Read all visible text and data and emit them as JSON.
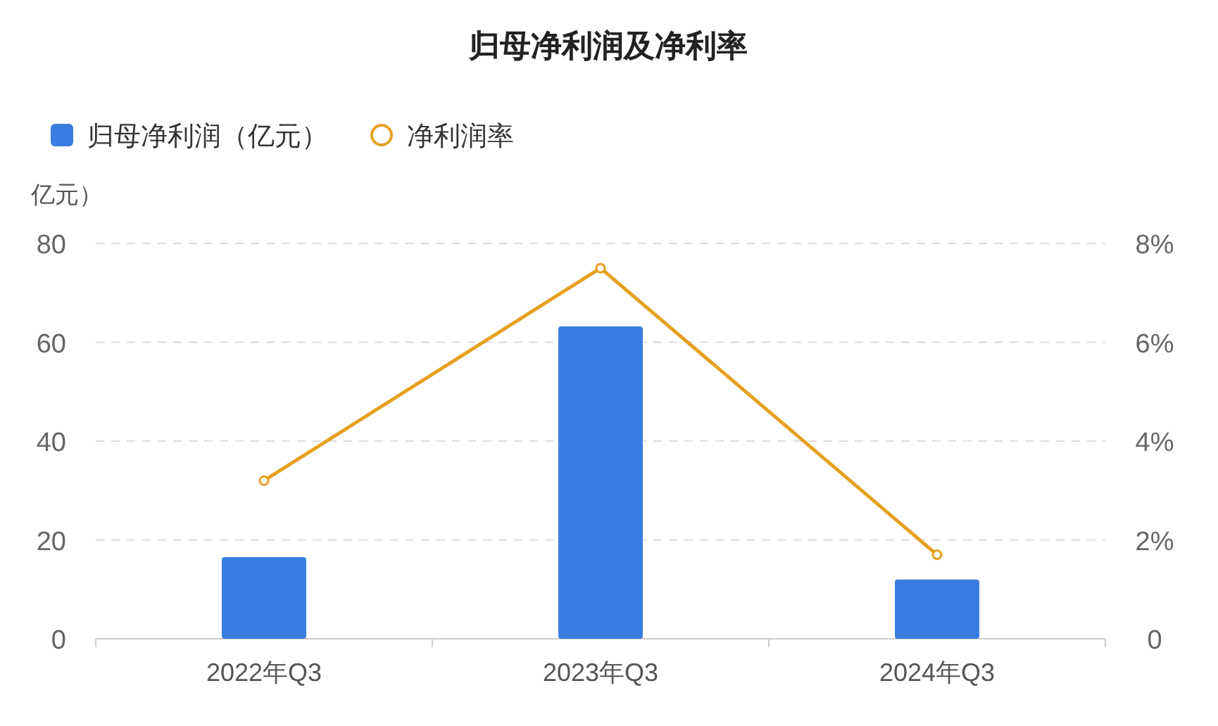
{
  "chart_data": {
    "type": "bar",
    "title": "归母净利润及净利率",
    "ylabel": "亿元）",
    "categories": [
      "2022年Q3",
      "2023年Q3",
      "2024年Q3"
    ],
    "series": [
      {
        "name": "归母净利润（亿元）",
        "color": "#3a7de0",
        "values": [
          16.5,
          63.2,
          12.0
        ]
      },
      {
        "name": "净利润率",
        "type": "line",
        "axis": "y2",
        "color": "#e6a020",
        "values": [
          3.2,
          7.5,
          1.7
        ]
      }
    ],
    "ylim": [
      0,
      80
    ],
    "yticks": [
      0,
      20,
      40,
      60,
      80
    ],
    "y2lim": [
      0,
      8
    ],
    "y2ticks": [
      {
        "value": 0,
        "label": "0"
      },
      {
        "value": 2,
        "label": "2%"
      },
      {
        "value": 4,
        "label": "4%"
      },
      {
        "value": 6,
        "label": "6%"
      },
      {
        "value": 8,
        "label": "8%"
      }
    ],
    "grid": "y",
    "legend": "top left",
    "marker": "circle",
    "line_style": "solid"
  }
}
